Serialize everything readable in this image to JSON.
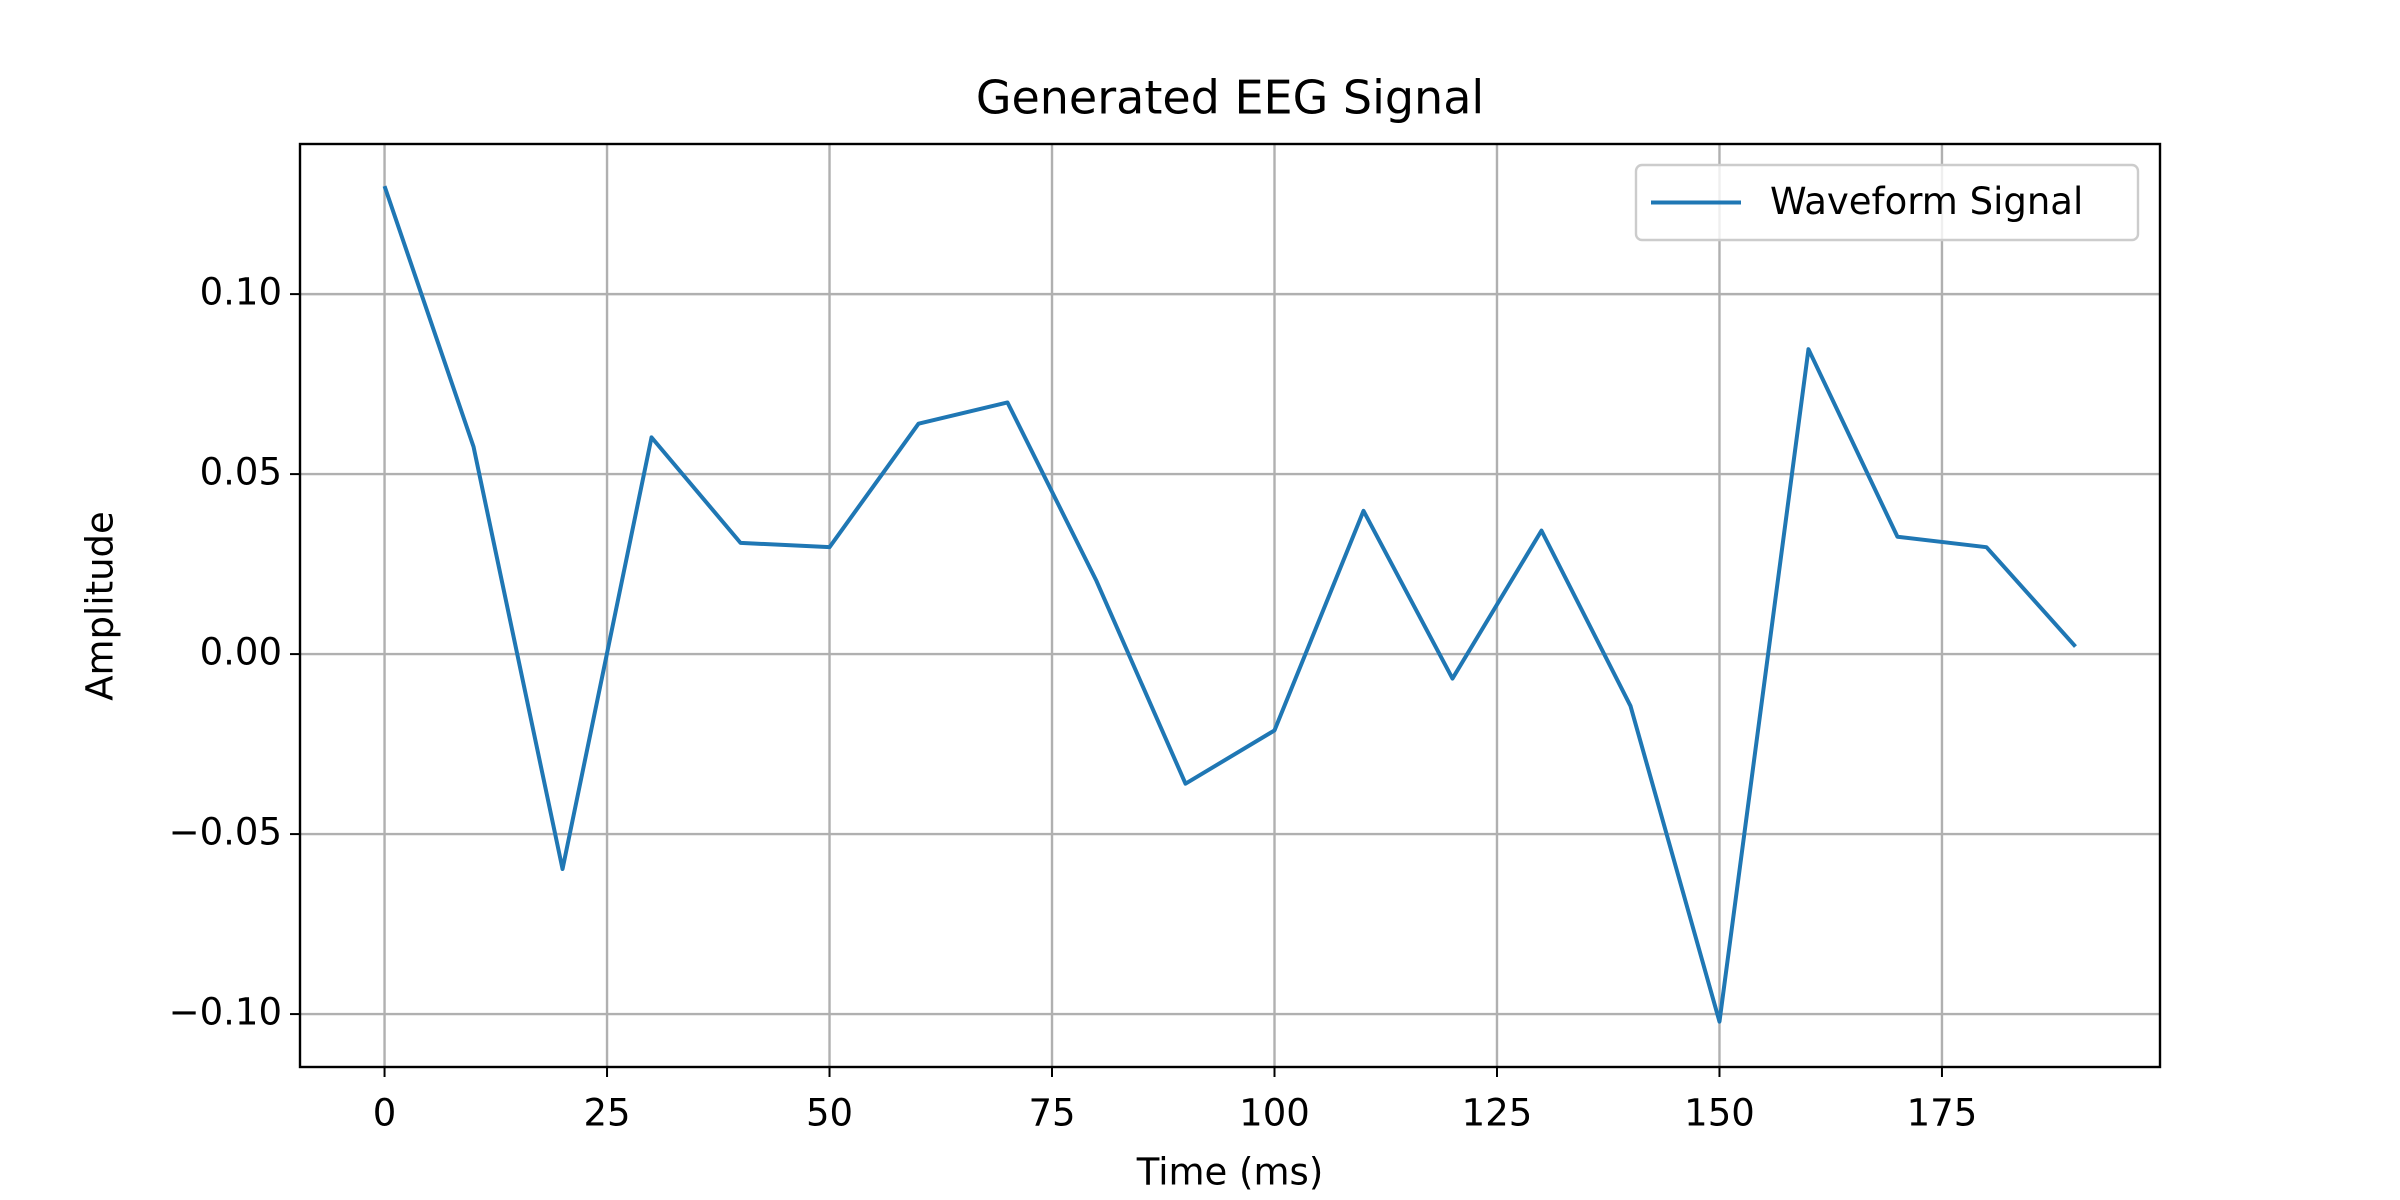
{
  "chart_data": {
    "type": "line",
    "title": "Generated EEG Signal",
    "x_label": "Time (ms)",
    "y_label": "Amplitude",
    "x": [
      0,
      10,
      20,
      30,
      40,
      50,
      60,
      70,
      80,
      90,
      100,
      110,
      120,
      130,
      140,
      150,
      160,
      170,
      180,
      190
    ],
    "series": [
      {
        "name": "Waveform Signal",
        "color": "#1f77b4",
        "values": [
          0.13,
          0.0576,
          -0.0597,
          0.0602,
          0.0309,
          0.0297,
          0.064,
          0.0699,
          0.0203,
          -0.036,
          -0.0212,
          0.0398,
          -0.0068,
          0.0343,
          -0.0144,
          -0.1021,
          0.0847,
          0.0326,
          0.0297,
          0.0021
        ]
      }
    ],
    "xlim": [
      -9.5,
      199.5
    ],
    "xticks": [
      0,
      25,
      50,
      75,
      100,
      125,
      150,
      175
    ],
    "ylim": [
      -0.1147,
      0.1417
    ],
    "yticks": [
      {
        "value": -0.1,
        "label": "−0.10"
      },
      {
        "value": -0.05,
        "label": "−0.05"
      },
      {
        "value": 0,
        "label": "0.00"
      },
      {
        "value": 0.05,
        "label": "0.05"
      },
      {
        "value": 0.1,
        "label": "0.10"
      }
    ],
    "grid": true,
    "legend_loc": "upper right"
  }
}
